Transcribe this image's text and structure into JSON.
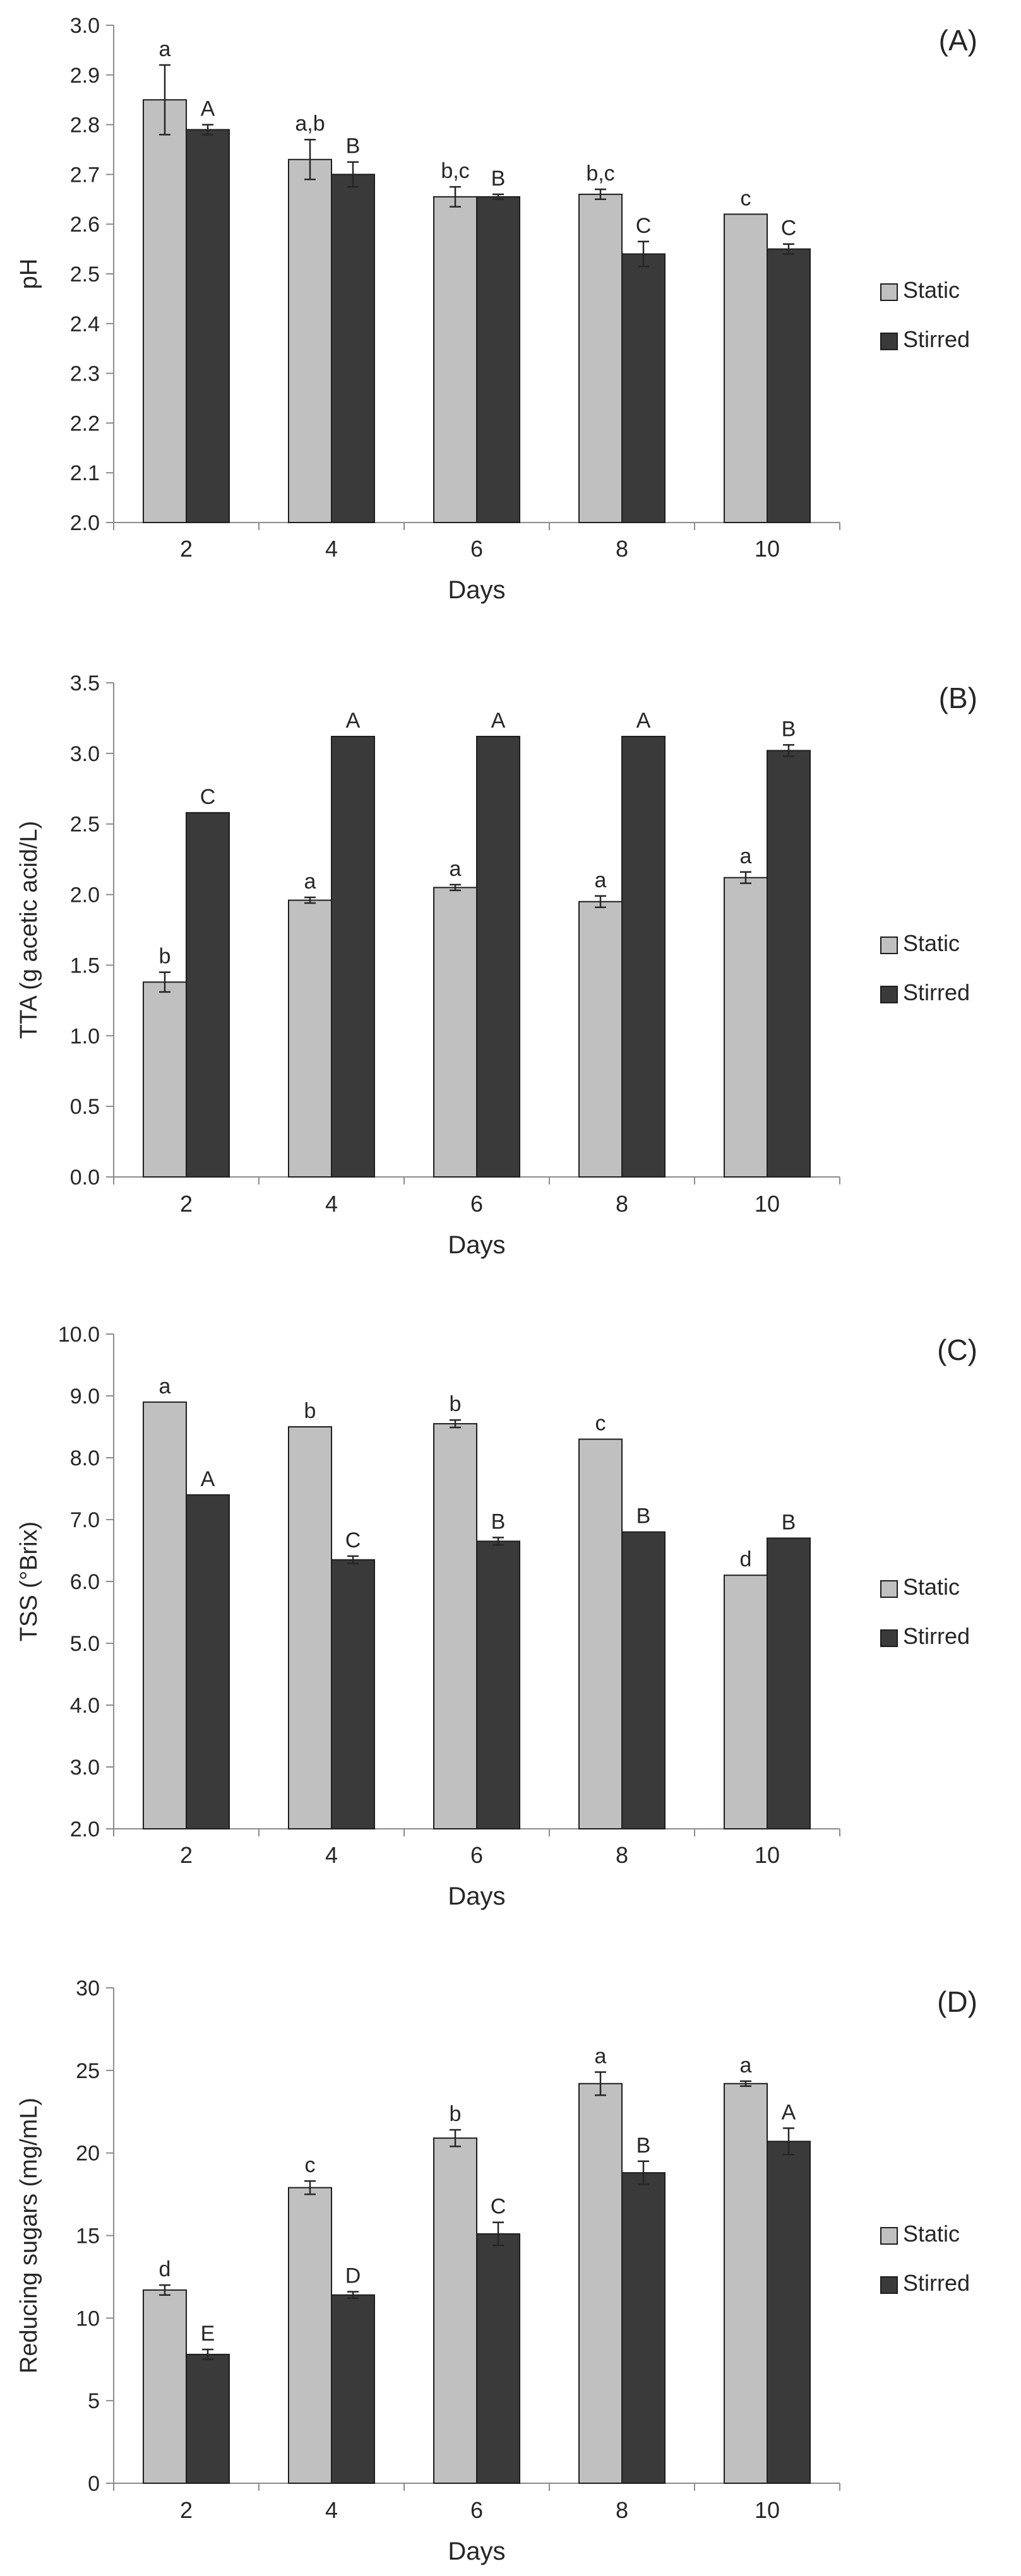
{
  "colors": {
    "static": "#c0c0c0",
    "stirred": "#3a3a3a",
    "axis": "#8c8c8c",
    "text": "#262626",
    "error": "#262626"
  },
  "chart_data": [
    {
      "type": "bar",
      "panel_label": "(A)",
      "categories": [
        "2",
        "4",
        "6",
        "8",
        "10"
      ],
      "xlabel": "Days",
      "ylabel": "pH",
      "ylim": [
        2.0,
        3.0
      ],
      "yticks": [
        "2.0",
        "2.1",
        "2.2",
        "2.3",
        "2.4",
        "2.5",
        "2.6",
        "2.7",
        "2.8",
        "2.9",
        "3.0"
      ],
      "legend_position": "right",
      "series": [
        {
          "name": "Static",
          "values": [
            2.85,
            2.73,
            2.655,
            2.66,
            2.62
          ],
          "errors": [
            0.07,
            0.04,
            0.02,
            0.01,
            0.0
          ],
          "letters": [
            "a",
            "a,b",
            "b,c",
            "b,c",
            "c"
          ]
        },
        {
          "name": "Stirred",
          "values": [
            2.79,
            2.7,
            2.655,
            2.54,
            2.55
          ],
          "errors": [
            0.01,
            0.025,
            0.005,
            0.025,
            0.01
          ],
          "letters": [
            "A",
            "B",
            "B",
            "C",
            "C"
          ]
        }
      ]
    },
    {
      "type": "bar",
      "panel_label": "(B)",
      "categories": [
        "2",
        "4",
        "6",
        "8",
        "10"
      ],
      "xlabel": "Days",
      "ylabel": "TTA (g acetic acid/L)",
      "ylim": [
        0.0,
        3.5
      ],
      "yticks": [
        "0.0",
        "0.5",
        "1.0",
        "1.5",
        "2.0",
        "2.5",
        "3.0",
        "3.5"
      ],
      "legend_position": "right",
      "series": [
        {
          "name": "Static",
          "values": [
            1.38,
            1.96,
            2.05,
            1.95,
            2.12
          ],
          "errors": [
            0.07,
            0.02,
            0.02,
            0.04,
            0.04
          ],
          "letters": [
            "b",
            "a",
            "a",
            "a",
            "a"
          ]
        },
        {
          "name": "Stirred",
          "values": [
            2.58,
            3.12,
            3.12,
            3.12,
            3.02
          ],
          "errors": [
            0.0,
            0.0,
            0.0,
            0.0,
            0.04
          ],
          "letters": [
            "C",
            "A",
            "A",
            "A",
            "B"
          ]
        }
      ]
    },
    {
      "type": "bar",
      "panel_label": "(C)",
      "categories": [
        "2",
        "4",
        "6",
        "8",
        "10"
      ],
      "xlabel": "Days",
      "ylabel": "TSS (°Brix)",
      "ylim": [
        2.0,
        10.0
      ],
      "yticks": [
        "2.0",
        "3.0",
        "4.0",
        "5.0",
        "6.0",
        "7.0",
        "8.0",
        "9.0",
        "10.0"
      ],
      "legend_position": "right",
      "series": [
        {
          "name": "Static",
          "values": [
            8.9,
            8.5,
            8.55,
            8.3,
            6.1
          ],
          "errors": [
            0.0,
            0.0,
            0.06,
            0.0,
            0.0
          ],
          "letters": [
            "a",
            "b",
            "b",
            "c",
            "d"
          ]
        },
        {
          "name": "Stirred",
          "values": [
            7.4,
            6.35,
            6.65,
            6.8,
            6.7
          ],
          "errors": [
            0.0,
            0.06,
            0.06,
            0.0,
            0.0
          ],
          "letters": [
            "A",
            "C",
            "B",
            "B",
            "B"
          ]
        }
      ]
    },
    {
      "type": "bar",
      "panel_label": "(D)",
      "categories": [
        "2",
        "4",
        "6",
        "8",
        "10"
      ],
      "xlabel": "Days",
      "ylabel": "Reducing sugars (mg/mL)",
      "ylim": [
        0,
        30
      ],
      "yticks": [
        "0",
        "5",
        "10",
        "15",
        "20",
        "25",
        "30"
      ],
      "legend_position": "right",
      "series": [
        {
          "name": "Static",
          "values": [
            11.7,
            17.9,
            20.9,
            24.2,
            24.2
          ],
          "errors": [
            0.3,
            0.4,
            0.5,
            0.7,
            0.15
          ],
          "letters": [
            "d",
            "c",
            "b",
            "a",
            "a"
          ]
        },
        {
          "name": "Stirred",
          "values": [
            7.8,
            11.4,
            15.1,
            18.8,
            20.7
          ],
          "errors": [
            0.3,
            0.2,
            0.7,
            0.7,
            0.8
          ],
          "letters": [
            "E",
            "D",
            "C",
            "B",
            "A"
          ]
        }
      ]
    }
  ]
}
